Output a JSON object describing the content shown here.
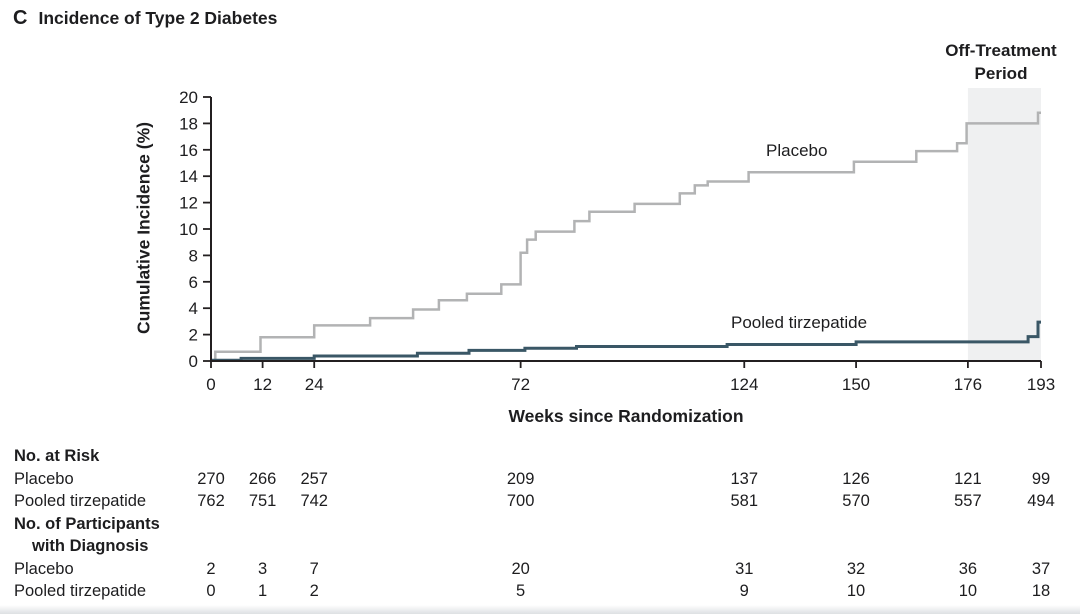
{
  "panel": {
    "letter": "C",
    "title": "Incidence of Type 2 Diabetes"
  },
  "off_treatment_label": {
    "line1": "Off-Treatment",
    "line2": "Period"
  },
  "colors": {
    "placebo_line": "#b2b3b4",
    "tirzepatide_line": "#3a5766",
    "axis": "#231f20",
    "text": "#1d1d1f",
    "off_treatment_fill": "#eff0f1"
  },
  "chart_data": {
    "type": "line",
    "subtype": "step",
    "title": "Incidence of Type 2 Diabetes",
    "xlabel": "Weeks since Randomization",
    "ylabel": "Cumulative Incidence (%)",
    "xlim": [
      0,
      193
    ],
    "ylim": [
      0,
      20
    ],
    "x_ticks": [
      0,
      12,
      24,
      72,
      124,
      150,
      176,
      193
    ],
    "y_ticks": [
      0,
      2,
      4,
      6,
      8,
      10,
      12,
      14,
      16,
      18,
      20
    ],
    "grid": false,
    "legend_position": "inline-labels",
    "off_treatment_region": {
      "x_start": 176,
      "x_end": 193
    },
    "series": [
      {
        "name": "Placebo",
        "color": "#b2b3b4",
        "steps": [
          [
            0,
            0.05
          ],
          [
            1,
            0.7
          ],
          [
            11.5,
            1.8
          ],
          [
            24,
            2.7
          ],
          [
            37,
            3.25
          ],
          [
            47,
            3.9
          ],
          [
            53,
            4.6
          ],
          [
            59.5,
            5.1
          ],
          [
            67.5,
            5.8
          ],
          [
            72,
            8.2
          ],
          [
            73.5,
            9.2
          ],
          [
            75.5,
            9.8
          ],
          [
            84.5,
            10.6
          ],
          [
            88,
            11.3
          ],
          [
            98.5,
            11.9
          ],
          [
            109,
            12.7
          ],
          [
            112.5,
            13.3
          ],
          [
            115.5,
            13.6
          ],
          [
            125,
            14.3
          ],
          [
            149.5,
            15.1
          ],
          [
            164,
            15.9
          ],
          [
            173.5,
            16.5
          ],
          [
            175.7,
            18.0
          ],
          [
            192.3,
            18.8
          ]
        ],
        "end_week": 193,
        "final_value_pct": 18.8
      },
      {
        "name": "Pooled tirzepatide",
        "color": "#3a5766",
        "steps": [
          [
            0,
            0.05
          ],
          [
            7,
            0.2
          ],
          [
            24,
            0.38
          ],
          [
            48,
            0.58
          ],
          [
            60,
            0.8
          ],
          [
            73,
            0.97
          ],
          [
            85,
            1.1
          ],
          [
            120,
            1.25
          ],
          [
            150,
            1.45
          ],
          [
            190,
            1.85
          ],
          [
            192.3,
            2.95
          ]
        ],
        "end_week": 193,
        "final_value_pct": 2.95
      }
    ]
  },
  "risk_table": {
    "columns_weeks": [
      0,
      12,
      24,
      72,
      124,
      150,
      176,
      193
    ],
    "sections": [
      {
        "header_lines": [
          "No. at Risk"
        ],
        "rows": [
          {
            "label": "Placebo",
            "values": [
              "270",
              "266",
              "257",
              "209",
              "137",
              "126",
              "121",
              "99"
            ]
          },
          {
            "label": "Pooled tirzepatide",
            "values": [
              "762",
              "751",
              "742",
              "700",
              "581",
              "570",
              "557",
              "494"
            ]
          }
        ]
      },
      {
        "header_lines": [
          "No. of Participants",
          "with Diagnosis"
        ],
        "rows": [
          {
            "label": "Placebo",
            "values": [
              "2",
              "3",
              "7",
              "20",
              "31",
              "32",
              "36",
              "37"
            ]
          },
          {
            "label": "Pooled tirzepatide",
            "values": [
              "0",
              "1",
              "2",
              "5",
              "9",
              "10",
              "10",
              "18"
            ]
          }
        ]
      }
    ]
  }
}
